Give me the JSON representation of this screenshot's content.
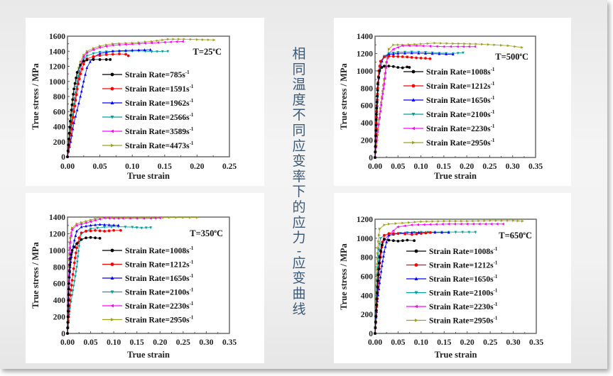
{
  "slide": {
    "title_vertical": "相同温度不同应变率下的应力-应变曲线",
    "title_chars": [
      "相",
      "同",
      "温",
      "度",
      "不",
      "同",
      "应",
      "变",
      "率",
      "下",
      "的",
      "应",
      "力",
      "-",
      "应",
      "变",
      "曲",
      "线"
    ],
    "colors": {
      "background": "#efefef",
      "title_text": "#3d5b78",
      "panel": "#ffffff"
    }
  },
  "chart_data": [
    {
      "id": "t25",
      "type": "line",
      "title": "",
      "annotation": "T=25°C",
      "annotation_main": "T=25",
      "annotation_unit": "C",
      "xlabel": "True strain",
      "ylabel": "True stress / MPa",
      "xlim": [
        0,
        0.25
      ],
      "ylim": [
        0,
        1600
      ],
      "xticks": [
        "0.00",
        "0.05",
        "0.10",
        "0.15",
        "0.20",
        "0.25"
      ],
      "yticks": [
        "0",
        "200",
        "400",
        "600",
        "800",
        "1000",
        "1200",
        "1400",
        "1600"
      ],
      "legend_position": "center-right",
      "grid": false,
      "series": [
        {
          "name": "Strain Rate=785s-1",
          "label": "Strain Rate=785s",
          "color": "#000000",
          "marker": "circle",
          "x": [
            0,
            0.005,
            0.01,
            0.015,
            0.02,
            0.025,
            0.03,
            0.04,
            0.05,
            0.06,
            0.066
          ],
          "y": [
            0,
            550,
            900,
            1120,
            1220,
            1270,
            1285,
            1290,
            1290,
            1290,
            1290
          ]
        },
        {
          "name": "Strain Rate=1591s-1",
          "label": "Strain Rate=1591s",
          "color": "#ff0000",
          "marker": "circle",
          "x": [
            0,
            0.005,
            0.01,
            0.015,
            0.02,
            0.025,
            0.03,
            0.04,
            0.05,
            0.06,
            0.07,
            0.08,
            0.09,
            0.094
          ],
          "y": [
            0,
            300,
            600,
            900,
            1100,
            1230,
            1300,
            1330,
            1345,
            1355,
            1360,
            1365,
            1360,
            1340
          ]
        },
        {
          "name": "Strain Rate=1962s-1",
          "label": "Strain Rate=1962s",
          "color": "#0000ff",
          "marker": "triangle-up",
          "x": [
            0,
            0.005,
            0.01,
            0.015,
            0.02,
            0.025,
            0.03,
            0.035,
            0.04,
            0.05,
            0.07,
            0.09,
            0.11,
            0.128
          ],
          "y": [
            0,
            200,
            450,
            620,
            800,
            1000,
            1180,
            1260,
            1320,
            1370,
            1400,
            1410,
            1415,
            1420
          ]
        },
        {
          "name": "Strain Rate=2566s-1",
          "label": "Strain Rate=2566s",
          "color": "#00a0a0",
          "marker": "triangle-down",
          "x": [
            0,
            0.005,
            0.01,
            0.015,
            0.02,
            0.025,
            0.03,
            0.04,
            0.05,
            0.07,
            0.09,
            0.11,
            0.13,
            0.155
          ],
          "y": [
            0,
            350,
            700,
            1000,
            1200,
            1300,
            1340,
            1370,
            1390,
            1400,
            1400,
            1405,
            1395,
            1400
          ]
        },
        {
          "name": "Strain Rate=3589s-1",
          "label": "Strain Rate=3589s",
          "color": "#ff00ff",
          "marker": "triangle-left",
          "x": [
            0,
            0.005,
            0.01,
            0.015,
            0.02,
            0.025,
            0.03,
            0.04,
            0.05,
            0.07,
            0.09,
            0.11,
            0.13,
            0.15,
            0.178
          ],
          "y": [
            0,
            300,
            600,
            900,
            1200,
            1330,
            1380,
            1420,
            1450,
            1480,
            1490,
            1500,
            1510,
            1520,
            1530
          ]
        },
        {
          "name": "Strain Rate=4473s-1",
          "label": "Strain Rate=4473s",
          "color": "#a0a020",
          "marker": "triangle-right",
          "x": [
            0,
            0.005,
            0.01,
            0.015,
            0.02,
            0.025,
            0.03,
            0.04,
            0.05,
            0.07,
            0.1,
            0.13,
            0.155,
            0.18,
            0.2,
            0.226
          ],
          "y": [
            0,
            450,
            900,
            1100,
            1260,
            1350,
            1400,
            1440,
            1470,
            1500,
            1510,
            1530,
            1560,
            1560,
            1555,
            1550
          ]
        }
      ]
    },
    {
      "id": "t500",
      "type": "line",
      "title": "",
      "annotation": "T=500°C",
      "annotation_main": "T=500",
      "annotation_unit": "C",
      "xlabel": "True strain",
      "ylabel": "True stress / MPa",
      "xlim": [
        0,
        0.35
      ],
      "ylim": [
        0,
        1400
      ],
      "xticks": [
        "0.00",
        "0.05",
        "0.10",
        "0.15",
        "0.20",
        "0.25",
        "0.30",
        "0.35"
      ],
      "yticks": [
        "0",
        "200",
        "400",
        "600",
        "800",
        "1000",
        "1200",
        "1400"
      ],
      "legend_position": "center-right",
      "grid": false,
      "series": [
        {
          "name": "Strain Rate=1008s-1",
          "label": "Strain Rate=1008s",
          "color": "#000000",
          "marker": "circle",
          "x": [
            0,
            0.003,
            0.006,
            0.01,
            0.015,
            0.02,
            0.03,
            0.04,
            0.05,
            0.06,
            0.07,
            0.075
          ],
          "y": [
            0,
            500,
            850,
            1000,
            1040,
            1055,
            1055,
            1050,
            1040,
            1035,
            1045,
            1040
          ]
        },
        {
          "name": "Strain Rate=1212s-1",
          "label": "Strain Rate=1212s",
          "color": "#ff0000",
          "marker": "circle",
          "x": [
            0,
            0.004,
            0.008,
            0.012,
            0.02,
            0.03,
            0.05,
            0.07,
            0.09,
            0.11,
            0.12
          ],
          "y": [
            0,
            600,
            1000,
            1110,
            1160,
            1170,
            1165,
            1160,
            1150,
            1145,
            1140
          ]
        },
        {
          "name": "Strain Rate=1650s-1",
          "label": "Strain Rate=1650s",
          "color": "#0000ff",
          "marker": "triangle-up",
          "x": [
            0,
            0.003,
            0.006,
            0.01,
            0.015,
            0.02,
            0.03,
            0.05,
            0.08,
            0.11,
            0.14,
            0.17
          ],
          "y": [
            0,
            400,
            850,
            1000,
            1110,
            1160,
            1190,
            1200,
            1205,
            1200,
            1195,
            1190
          ]
        },
        {
          "name": "Strain Rate=2100s-1",
          "label": "Strain Rate=2100s",
          "color": "#00a0a0",
          "marker": "triangle-down",
          "x": [
            0,
            0.004,
            0.008,
            0.012,
            0.02,
            0.03,
            0.05,
            0.08,
            0.11,
            0.14,
            0.17,
            0.192
          ],
          "y": [
            0,
            550,
            900,
            1100,
            1170,
            1200,
            1215,
            1220,
            1215,
            1205,
            1200,
            1210
          ]
        },
        {
          "name": "Strain Rate=2230s-1",
          "label": "Strain Rate=2230s",
          "color": "#ff00ff",
          "marker": "triangle-left",
          "x": [
            0,
            0.005,
            0.01,
            0.015,
            0.02,
            0.025,
            0.03,
            0.04,
            0.06,
            0.09,
            0.12,
            0.15,
            0.18,
            0.218
          ],
          "y": [
            0,
            300,
            460,
            680,
            850,
            1100,
            1200,
            1250,
            1290,
            1290,
            1285,
            1280,
            1280,
            1280
          ]
        },
        {
          "name": "Strain Rate=2950s-1",
          "label": "Strain Rate=2950s",
          "color": "#a0a020",
          "marker": "triangle-right",
          "x": [
            0,
            0.005,
            0.01,
            0.015,
            0.02,
            0.025,
            0.03,
            0.04,
            0.06,
            0.1,
            0.13,
            0.17,
            0.22,
            0.26,
            0.29,
            0.32
          ],
          "y": [
            0,
            200,
            500,
            700,
            900,
            1100,
            1250,
            1300,
            1300,
            1310,
            1320,
            1315,
            1310,
            1300,
            1290,
            1270
          ]
        }
      ]
    },
    {
      "id": "t350",
      "type": "line",
      "title": "",
      "annotation": "T=350°C",
      "annotation_main": "T=350",
      "annotation_unit": "C",
      "xlabel": "True strain",
      "ylabel": "True stress / MPa",
      "xlim": [
        0,
        0.35
      ],
      "ylim": [
        0,
        1400
      ],
      "xticks": [
        "0.00",
        "0.05",
        "0.10",
        "0.15",
        "0.20",
        "0.25",
        "0.30",
        "0.35"
      ],
      "yticks": [
        "0",
        "200",
        "400",
        "600",
        "800",
        "1000",
        "1200",
        "1400"
      ],
      "legend_position": "center-right",
      "grid": false,
      "series": [
        {
          "name": "Strain Rate=1008s-1",
          "label": "Strain Rate=1008s",
          "color": "#000000",
          "marker": "circle",
          "x": [
            0,
            0.003,
            0.006,
            0.01,
            0.015,
            0.02,
            0.03,
            0.04,
            0.05,
            0.06,
            0.07
          ],
          "y": [
            0,
            600,
            900,
            1000,
            1040,
            1080,
            1130,
            1150,
            1155,
            1150,
            1145
          ]
        },
        {
          "name": "Strain Rate=1212s-1",
          "label": "Strain Rate=1212s",
          "color": "#ff0000",
          "marker": "circle",
          "x": [
            0,
            0.005,
            0.01,
            0.015,
            0.02,
            0.025,
            0.03,
            0.04,
            0.06,
            0.08,
            0.1,
            0.115
          ],
          "y": [
            0,
            400,
            640,
            850,
            1030,
            1150,
            1210,
            1230,
            1240,
            1230,
            1240,
            1240
          ]
        },
        {
          "name": "Strain Rate=1650s-1",
          "label": "Strain Rate=1650s",
          "color": "#0000ff",
          "marker": "triangle-up",
          "x": [
            0,
            0.003,
            0.006,
            0.01,
            0.015,
            0.02,
            0.03,
            0.05,
            0.07,
            0.09,
            0.11
          ],
          "y": [
            0,
            550,
            800,
            980,
            1120,
            1230,
            1280,
            1300,
            1310,
            1305,
            1300
          ]
        },
        {
          "name": "Strain Rate=2100s-1",
          "label": "Strain Rate=2100s",
          "color": "#00a0a0",
          "marker": "triangle-down",
          "x": [
            0,
            0.005,
            0.01,
            0.015,
            0.02,
            0.025,
            0.03,
            0.05,
            0.08,
            0.11,
            0.14,
            0.16,
            0.18
          ],
          "y": [
            0,
            300,
            460,
            630,
            800,
            1050,
            1200,
            1260,
            1280,
            1285,
            1280,
            1270,
            1275
          ]
        },
        {
          "name": "Strain Rate=2230s-1",
          "label": "Strain Rate=2230s",
          "color": "#ff00ff",
          "marker": "triangle-left",
          "x": [
            0,
            0.003,
            0.006,
            0.01,
            0.02,
            0.04,
            0.06,
            0.08,
            0.1,
            0.12,
            0.15,
            0.18,
            0.2
          ],
          "y": [
            0,
            700,
            1100,
            1250,
            1300,
            1330,
            1360,
            1390,
            1385,
            1385,
            1385,
            1385,
            1390
          ]
        },
        {
          "name": "Strain Rate=2950s-1",
          "label": "Strain Rate=2950s",
          "color": "#a0a020",
          "marker": "triangle-right",
          "x": [
            0,
            0.003,
            0.006,
            0.01,
            0.02,
            0.04,
            0.07,
            0.1,
            0.14,
            0.18,
            0.22,
            0.25,
            0.28
          ],
          "y": [
            0,
            750,
            1150,
            1270,
            1320,
            1350,
            1395,
            1395,
            1395,
            1395,
            1395,
            1395,
            1395
          ]
        }
      ]
    },
    {
      "id": "t650",
      "type": "line",
      "title": "",
      "annotation": "T=650°C",
      "annotation_main": "T=650",
      "annotation_unit": "C",
      "xlabel": "True strain",
      "ylabel": "True stress / MPa",
      "xlim": [
        0,
        0.35
      ],
      "ylim": [
        0,
        1200
      ],
      "xticks": [
        "0.00",
        "0.05",
        "0.10",
        "0.15",
        "0.20",
        "0.25",
        "0.30",
        "0.35"
      ],
      "yticks": [
        "0",
        "200",
        "400",
        "600",
        "800",
        "1000",
        "1200"
      ],
      "legend_position": "center-right",
      "grid": false,
      "series": [
        {
          "name": "Strain Rate=1008s-1",
          "label": "Strain Rate=1008s",
          "color": "#000000",
          "marker": "circle",
          "x": [
            0,
            0.003,
            0.006,
            0.01,
            0.015,
            0.02,
            0.03,
            0.04,
            0.05,
            0.06,
            0.07,
            0.085
          ],
          "y": [
            0,
            300,
            550,
            800,
            930,
            990,
            980,
            975,
            970,
            975,
            980,
            975
          ]
        },
        {
          "name": "Strain Rate=1212s-1",
          "label": "Strain Rate=1212s",
          "color": "#ff0000",
          "marker": "circle",
          "x": [
            0,
            0.004,
            0.008,
            0.012,
            0.016,
            0.02,
            0.03,
            0.05,
            0.08,
            0.1,
            0.12
          ],
          "y": [
            0,
            300,
            620,
            800,
            960,
            1030,
            1050,
            1050,
            1040,
            1050,
            1060
          ]
        },
        {
          "name": "Strain Rate=1650s-1",
          "label": "Strain Rate=1650s",
          "color": "#0000ff",
          "marker": "triangle-up",
          "x": [
            0,
            0.005,
            0.01,
            0.015,
            0.02,
            0.025,
            0.03,
            0.05,
            0.08,
            0.11,
            0.13,
            0.16
          ],
          "y": [
            0,
            340,
            530,
            710,
            860,
            960,
            1030,
            1050,
            1060,
            1060,
            1060,
            1060
          ]
        },
        {
          "name": "Strain Rate=2100s-1",
          "label": "Strain Rate=2100s",
          "color": "#00a0a0",
          "marker": "triangle-down",
          "x": [
            0,
            0.004,
            0.008,
            0.012,
            0.02,
            0.04,
            0.07,
            0.1,
            0.13,
            0.16,
            0.19,
            0.218
          ],
          "y": [
            0,
            500,
            880,
            1000,
            1030,
            1050,
            1060,
            1065,
            1065,
            1065,
            1065,
            1065
          ]
        },
        {
          "name": "Strain Rate=2230s-1",
          "label": "Strain Rate=2230s",
          "color": "#ff00ff",
          "marker": "triangle-left",
          "x": [
            0,
            0.004,
            0.008,
            0.012,
            0.02,
            0.03,
            0.05,
            0.08,
            0.12,
            0.16,
            0.2,
            0.24,
            0.278
          ],
          "y": [
            0,
            350,
            700,
            880,
            980,
            1040,
            1120,
            1140,
            1145,
            1150,
            1150,
            1150,
            1150
          ]
        },
        {
          "name": "Strain Rate=2950s-1",
          "label": "Strain Rate=2950s",
          "color": "#a0a020",
          "marker": "triangle-right",
          "x": [
            0,
            0.003,
            0.006,
            0.01,
            0.02,
            0.03,
            0.06,
            0.1,
            0.15,
            0.2,
            0.25,
            0.3,
            0.32
          ],
          "y": [
            0,
            500,
            900,
            1100,
            1140,
            1150,
            1160,
            1175,
            1180,
            1180,
            1185,
            1185,
            1180
          ]
        }
      ]
    }
  ]
}
